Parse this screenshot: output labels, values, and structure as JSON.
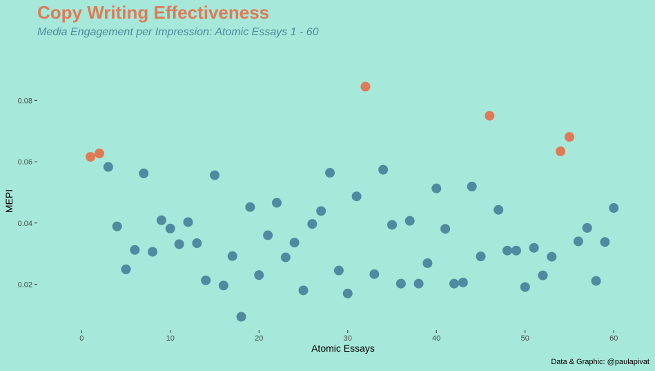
{
  "chart_data": {
    "type": "scatter",
    "title": "Copy Writing Effectiveness",
    "subtitle": "Media Engagement per Impression: Atomic Essays 1 - 60",
    "xlabel": "Atomic Essays",
    "ylabel": "MEPI",
    "caption": "Data & Graphic: @paulapivat",
    "xlim": [
      -5,
      62
    ],
    "ylim": [
      0.005,
      0.097
    ],
    "x_ticks": [
      0,
      10,
      20,
      30,
      40,
      50,
      60
    ],
    "y_ticks": [
      0.02,
      0.04,
      0.06,
      0.08
    ],
    "x_tick_labels": [
      "0",
      "10",
      "20",
      "30",
      "40",
      "50",
      "60"
    ],
    "y_tick_labels": [
      "0.02",
      "0.04",
      "0.06",
      "0.08"
    ],
    "grid": false,
    "legend": "none",
    "colors": {
      "background": "#a6e8d9",
      "normal": "#4f8aa0",
      "highlight": "#e07a56",
      "title": "#e07a56",
      "subtitle": "#4f8aa0"
    },
    "series": [
      {
        "values": [
          {
            "x": 1,
            "y": 0.0616,
            "highlight": true
          },
          {
            "x": 2,
            "y": 0.0627,
            "highlight": true
          },
          {
            "x": 3,
            "y": 0.0583
          },
          {
            "x": 4,
            "y": 0.0389
          },
          {
            "x": 5,
            "y": 0.0249
          },
          {
            "x": 6,
            "y": 0.0312
          },
          {
            "x": 7,
            "y": 0.0562
          },
          {
            "x": 8,
            "y": 0.0306
          },
          {
            "x": 9,
            "y": 0.0409
          },
          {
            "x": 10,
            "y": 0.0382
          },
          {
            "x": 11,
            "y": 0.0331
          },
          {
            "x": 12,
            "y": 0.0403
          },
          {
            "x": 13,
            "y": 0.0334
          },
          {
            "x": 14,
            "y": 0.0213
          },
          {
            "x": 15,
            "y": 0.0556
          },
          {
            "x": 16,
            "y": 0.0196
          },
          {
            "x": 17,
            "y": 0.0292
          },
          {
            "x": 18,
            "y": 0.0094
          },
          {
            "x": 19,
            "y": 0.0452
          },
          {
            "x": 20,
            "y": 0.023
          },
          {
            "x": 21,
            "y": 0.036
          },
          {
            "x": 22,
            "y": 0.0466
          },
          {
            "x": 23,
            "y": 0.0288
          },
          {
            "x": 24,
            "y": 0.0336
          },
          {
            "x": 25,
            "y": 0.018
          },
          {
            "x": 26,
            "y": 0.0397
          },
          {
            "x": 27,
            "y": 0.0439
          },
          {
            "x": 28,
            "y": 0.0564
          },
          {
            "x": 29,
            "y": 0.0245
          },
          {
            "x": 30,
            "y": 0.017
          },
          {
            "x": 31,
            "y": 0.0487
          },
          {
            "x": 32,
            "y": 0.0845,
            "highlight": true
          },
          {
            "x": 33,
            "y": 0.0233
          },
          {
            "x": 34,
            "y": 0.0574
          },
          {
            "x": 35,
            "y": 0.0394
          },
          {
            "x": 36,
            "y": 0.0202
          },
          {
            "x": 37,
            "y": 0.0407
          },
          {
            "x": 38,
            "y": 0.0202
          },
          {
            "x": 39,
            "y": 0.0269
          },
          {
            "x": 40,
            "y": 0.0513
          },
          {
            "x": 41,
            "y": 0.0381
          },
          {
            "x": 42,
            "y": 0.0202
          },
          {
            "x": 43,
            "y": 0.0206
          },
          {
            "x": 44,
            "y": 0.0519
          },
          {
            "x": 45,
            "y": 0.0291
          },
          {
            "x": 46,
            "y": 0.075,
            "highlight": true
          },
          {
            "x": 47,
            "y": 0.0443
          },
          {
            "x": 48,
            "y": 0.031
          },
          {
            "x": 49,
            "y": 0.031
          },
          {
            "x": 50,
            "y": 0.0191
          },
          {
            "x": 51,
            "y": 0.0319
          },
          {
            "x": 52,
            "y": 0.0229
          },
          {
            "x": 53,
            "y": 0.029
          },
          {
            "x": 54,
            "y": 0.0634,
            "highlight": true
          },
          {
            "x": 55,
            "y": 0.0681,
            "highlight": true
          },
          {
            "x": 56,
            "y": 0.034
          },
          {
            "x": 57,
            "y": 0.0384
          },
          {
            "x": 58,
            "y": 0.0211
          },
          {
            "x": 59,
            "y": 0.0338
          },
          {
            "x": 60,
            "y": 0.0449
          }
        ]
      }
    ]
  }
}
